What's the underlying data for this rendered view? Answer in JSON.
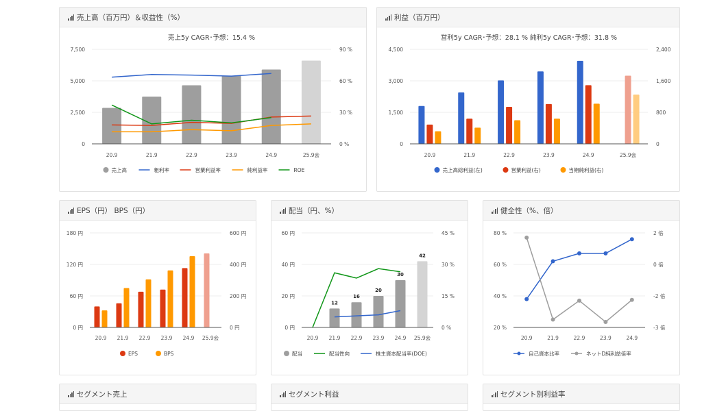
{
  "panels": [
    {
      "title": "売上高（百万円）＆収益性（%）"
    },
    {
      "title": "利益（百万円）"
    },
    {
      "title": "EPS（円） BPS（円）"
    },
    {
      "title": "配当（円、%）"
    },
    {
      "title": "健全性（%、倍）"
    },
    {
      "title": "セグメント売上"
    },
    {
      "title": "セグメント利益"
    },
    {
      "title": "セグメント別利益率"
    }
  ],
  "chart_data": [
    {
      "type": "bar+line",
      "title": "売上5y CAGR･予想：15.4 %",
      "categories": [
        "20.9",
        "21.9",
        "22.9",
        "23.9",
        "24.9",
        "25.9会"
      ],
      "left_axis": {
        "min": 0,
        "max": 7500,
        "ticks": [
          "0",
          "2,500",
          "5,000",
          "7,500"
        ]
      },
      "right_axis": {
        "min": 0,
        "max": 90,
        "ticks": [
          "0 %",
          "30 %",
          "60 %",
          "90 %"
        ]
      },
      "series": [
        {
          "name": "売上高",
          "type": "bar",
          "axis": "left",
          "color": "#9e9e9e",
          "forecast_color": "#d4d4d4",
          "values": [
            2850,
            3750,
            4650,
            5400,
            5900,
            6600
          ]
        },
        {
          "name": "粗利率",
          "type": "line",
          "axis": "right",
          "color": "#3366cc",
          "values": [
            63.5,
            66,
            65.5,
            64.5,
            67,
            null
          ]
        },
        {
          "name": "営業利益率",
          "type": "line",
          "axis": "right",
          "color": "#dc3912",
          "values": [
            18,
            17.5,
            20.5,
            19.5,
            25.5,
            26.5
          ]
        },
        {
          "name": "純利益率",
          "type": "line",
          "axis": "right",
          "color": "#ff9900",
          "values": [
            11.5,
            11.5,
            13.5,
            12.5,
            17.5,
            19
          ]
        },
        {
          "name": "ROE",
          "type": "line",
          "axis": "right",
          "color": "#109618",
          "values": [
            37,
            19,
            22.5,
            20,
            25,
            null
          ]
        }
      ]
    },
    {
      "type": "bar",
      "title": "営利5y CAGR･予想：28.1 %  純利5y CAGR･予想：31.8 %",
      "categories": [
        "20.9",
        "21.9",
        "22.9",
        "23.9",
        "24.9",
        "25.9会"
      ],
      "left_axis": {
        "min": 0,
        "max": 4500,
        "ticks": [
          "0",
          "1,500",
          "3,000",
          "4,500"
        ]
      },
      "right_axis": {
        "min": 0,
        "max": 2400,
        "ticks": [
          "0",
          "800",
          "1,600",
          "2,400"
        ]
      },
      "series": [
        {
          "name": "売上高総利益(左)",
          "type": "bar",
          "axis": "left",
          "color": "#3366cc",
          "forecast_color": "#99b3e6",
          "values": [
            1800,
            2450,
            3020,
            3450,
            3950,
            null
          ]
        },
        {
          "name": "営業利益(右)",
          "type": "bar",
          "axis": "right",
          "color": "#dc3912",
          "forecast_color": "#efa08f",
          "values": [
            490,
            640,
            940,
            1010,
            1490,
            1730
          ]
        },
        {
          "name": "当期純利益(右)",
          "type": "bar",
          "axis": "right",
          "color": "#ff9900",
          "forecast_color": "#ffcc80",
          "values": [
            320,
            410,
            600,
            640,
            1020,
            1250
          ]
        }
      ]
    },
    {
      "type": "bar",
      "title": "",
      "categories": [
        "20.9",
        "21.9",
        "22.9",
        "23.9",
        "24.9",
        "25.9会"
      ],
      "left_axis": {
        "min": 0,
        "max": 180,
        "ticks": [
          "0 円",
          "60 円",
          "120 円",
          "180 円"
        ]
      },
      "right_axis": {
        "min": 0,
        "max": 600,
        "ticks": [
          "0 円",
          "200 円",
          "400 円",
          "600 円"
        ]
      },
      "series": [
        {
          "name": "EPS",
          "type": "bar",
          "axis": "left",
          "color": "#dc3912",
          "forecast_color": "#efa08f",
          "values": [
            40,
            46,
            68,
            72,
            113,
            141
          ]
        },
        {
          "name": "BPS",
          "type": "bar",
          "axis": "right",
          "color": "#ff9900",
          "forecast_color": "#ffcc80",
          "values": [
            108,
            250,
            305,
            362,
            452,
            null
          ]
        }
      ]
    },
    {
      "type": "bar+line",
      "title": "",
      "categories": [
        "20.9",
        "21.9",
        "22.9",
        "23.9",
        "24.9",
        "25.9会"
      ],
      "left_axis": {
        "min": 0,
        "max": 60,
        "ticks": [
          "0 円",
          "20 円",
          "40 円",
          "60 円"
        ]
      },
      "right_axis": {
        "min": 0,
        "max": 45,
        "ticks": [
          "0 %",
          "15 %",
          "30 %",
          "45 %"
        ]
      },
      "series": [
        {
          "name": "配当",
          "type": "bar",
          "axis": "left",
          "color": "#9e9e9e",
          "forecast_color": "#d4d4d4",
          "values": [
            0,
            12,
            16,
            20,
            30,
            42
          ],
          "labels": [
            "",
            "12",
            "16",
            "20",
            "30",
            "42"
          ]
        },
        {
          "name": "配当性向",
          "type": "line",
          "axis": "right",
          "color": "#109618",
          "values": [
            0,
            26,
            23.5,
            28,
            26.5,
            null
          ]
        },
        {
          "name": "株主資本配当率(DOE)",
          "type": "line",
          "axis": "right",
          "color": "#3366cc",
          "values": [
            null,
            5,
            5.5,
            6,
            8,
            null
          ]
        }
      ]
    },
    {
      "type": "line",
      "title": "",
      "categories": [
        "20.9",
        "21.9",
        "22.9",
        "23.9",
        "24.9"
      ],
      "left_axis": {
        "min": 20,
        "max": 80,
        "ticks": [
          "20 %",
          "40 %",
          "60 %",
          "80 %"
        ]
      },
      "right_axis": {
        "min": -4,
        "max": 2,
        "ticks": [
          "-3 倍",
          "-2 倍",
          "0 倍",
          "2 倍"
        ]
      },
      "series": [
        {
          "name": "自己資本比率",
          "type": "line",
          "axis": "left",
          "color": "#3366cc",
          "dots": true,
          "values": [
            38,
            62,
            67,
            67,
            76
          ]
        },
        {
          "name": "ネットD純利益倍率",
          "type": "line",
          "axis": "right",
          "color": "#9e9e9e",
          "dots": true,
          "values": [
            1.7,
            -3.5,
            -2.3,
            -3.65,
            -2.25
          ]
        }
      ]
    }
  ]
}
